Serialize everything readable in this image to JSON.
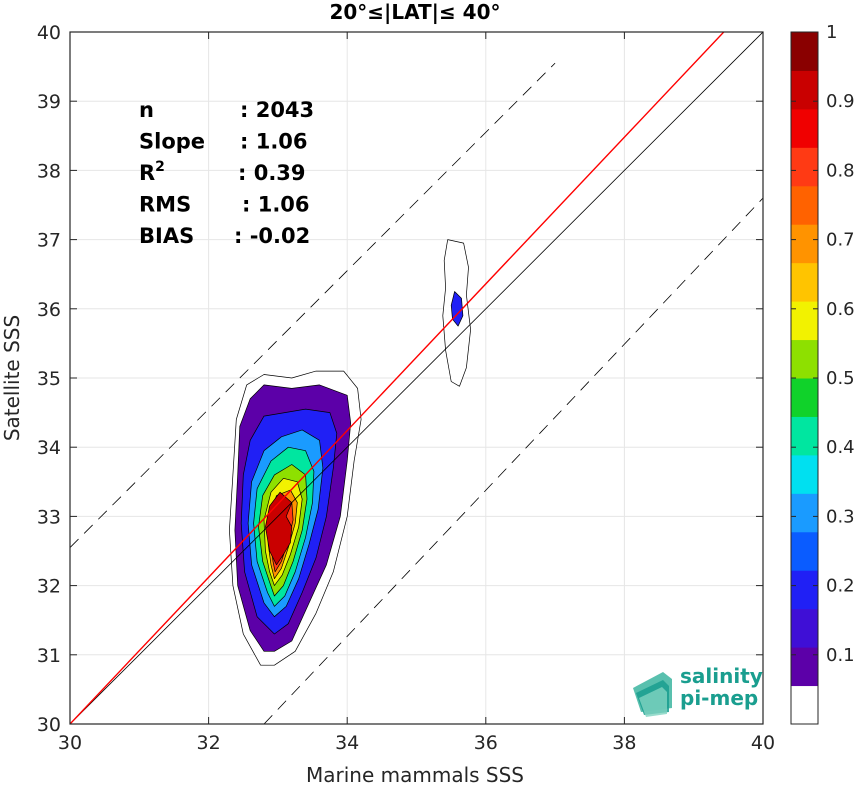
{
  "chart_data": {
    "type": "heatmap",
    "title": "20°≤|LAT|≤ 40°",
    "xlabel": "Marine mammals SSS",
    "ylabel": "Satellite SSS",
    "xlim": [
      30,
      40
    ],
    "ylim": [
      30,
      40
    ],
    "xticks": [
      "30",
      "32",
      "34",
      "36",
      "38",
      "40"
    ],
    "yticks": [
      "30",
      "31",
      "32",
      "33",
      "34",
      "35",
      "36",
      "37",
      "38",
      "39",
      "40"
    ],
    "grid": true,
    "stats": [
      {
        "label": "n",
        "value": ": 2043"
      },
      {
        "label": "Slope",
        "value": ": 1.06"
      },
      {
        "label": "R",
        "sup": "2",
        "value": ": 0.39"
      },
      {
        "label": "RMS",
        "value": ": 1.06"
      },
      {
        "label": "BIAS",
        "value": ": -0.02"
      }
    ],
    "lines": {
      "identity": {
        "color": "#000000",
        "points": [
          [
            30,
            30
          ],
          [
            40,
            40
          ]
        ]
      },
      "regression": {
        "color": "#ff0000",
        "slope": 1.06,
        "points": [
          [
            30,
            30
          ],
          [
            40,
            40.6
          ]
        ]
      },
      "dashed_upper": {
        "color": "#000000",
        "points": [
          [
            30,
            32.55
          ],
          [
            37,
            39.55
          ]
        ]
      },
      "dashed_lower": {
        "color": "#000000",
        "points": [
          [
            32.8,
            30
          ],
          [
            40,
            37.6
          ]
        ]
      }
    },
    "density_regions": [
      {
        "name": "main",
        "levels": [
          {
            "level": 0.05,
            "polygon": [
              [
                32.95,
                30.85
              ],
              [
                33.25,
                31.05
              ],
              [
                33.55,
                31.6
              ],
              [
                33.8,
                32.2
              ],
              [
                34.0,
                33.0
              ],
              [
                34.1,
                33.8
              ],
              [
                34.2,
                34.4
              ],
              [
                34.15,
                34.85
              ],
              [
                33.95,
                35.1
              ],
              [
                33.55,
                35.1
              ],
              [
                33.2,
                35.0
              ],
              [
                32.8,
                35.05
              ],
              [
                32.55,
                34.9
              ],
              [
                32.4,
                34.4
              ],
              [
                32.35,
                33.6
              ],
              [
                32.3,
                32.8
              ],
              [
                32.35,
                32.0
              ],
              [
                32.5,
                31.3
              ],
              [
                32.75,
                30.85
              ]
            ]
          },
          {
            "level": 0.1,
            "polygon": [
              [
                32.95,
                31.05
              ],
              [
                33.2,
                31.2
              ],
              [
                33.45,
                31.75
              ],
              [
                33.7,
                32.3
              ],
              [
                33.9,
                33.0
              ],
              [
                34.0,
                33.8
              ],
              [
                34.05,
                34.35
              ],
              [
                34.0,
                34.75
              ],
              [
                33.6,
                34.9
              ],
              [
                33.2,
                34.85
              ],
              [
                32.8,
                34.9
              ],
              [
                32.6,
                34.7
              ],
              [
                32.45,
                34.3
              ],
              [
                32.42,
                33.6
              ],
              [
                32.38,
                32.8
              ],
              [
                32.42,
                32.0
              ],
              [
                32.6,
                31.35
              ],
              [
                32.8,
                31.05
              ]
            ]
          },
          {
            "level": 0.2,
            "polygon": [
              [
                32.95,
                31.3
              ],
              [
                33.15,
                31.45
              ],
              [
                33.35,
                31.9
              ],
              [
                33.55,
                32.4
              ],
              [
                33.7,
                33.0
              ],
              [
                33.8,
                33.7
              ],
              [
                33.85,
                34.2
              ],
              [
                33.75,
                34.5
              ],
              [
                33.4,
                34.55
              ],
              [
                33.1,
                34.5
              ],
              [
                32.8,
                34.45
              ],
              [
                32.6,
                34.1
              ],
              [
                32.5,
                33.6
              ],
              [
                32.47,
                32.9
              ],
              [
                32.52,
                32.2
              ],
              [
                32.7,
                31.55
              ]
            ]
          },
          {
            "level": 0.3,
            "polygon": [
              [
                32.95,
                31.55
              ],
              [
                33.12,
                31.7
              ],
              [
                33.3,
                32.1
              ],
              [
                33.45,
                32.6
              ],
              [
                33.58,
                33.1
              ],
              [
                33.65,
                33.7
              ],
              [
                33.6,
                34.1
              ],
              [
                33.35,
                34.25
              ],
              [
                33.05,
                34.15
              ],
              [
                32.8,
                33.95
              ],
              [
                32.62,
                33.5
              ],
              [
                32.57,
                32.9
              ],
              [
                32.62,
                32.3
              ],
              [
                32.8,
                31.75
              ]
            ]
          },
          {
            "level": 0.4,
            "polygon": [
              [
                32.95,
                31.7
              ],
              [
                33.1,
                31.85
              ],
              [
                33.25,
                32.2
              ],
              [
                33.4,
                32.7
              ],
              [
                33.5,
                33.2
              ],
              [
                33.52,
                33.65
              ],
              [
                33.4,
                33.95
              ],
              [
                33.15,
                34.0
              ],
              [
                32.9,
                33.8
              ],
              [
                32.7,
                33.4
              ],
              [
                32.65,
                32.9
              ],
              [
                32.7,
                32.35
              ],
              [
                32.85,
                31.9
              ]
            ]
          },
          {
            "level": 0.5,
            "polygon": [
              [
                32.95,
                31.85
              ],
              [
                33.08,
                32.0
              ],
              [
                33.22,
                32.35
              ],
              [
                33.35,
                32.8
              ],
              [
                33.42,
                33.25
              ],
              [
                33.4,
                33.6
              ],
              [
                33.2,
                33.75
              ],
              [
                32.95,
                33.6
              ],
              [
                32.78,
                33.3
              ],
              [
                32.72,
                32.85
              ],
              [
                32.78,
                32.35
              ],
              [
                32.88,
                32.05
              ]
            ]
          },
          {
            "level": 0.6,
            "polygon": [
              [
                32.95,
                32.0
              ],
              [
                33.06,
                32.15
              ],
              [
                33.18,
                32.45
              ],
              [
                33.3,
                32.85
              ],
              [
                33.35,
                33.25
              ],
              [
                33.28,
                33.5
              ],
              [
                33.08,
                33.55
              ],
              [
                32.9,
                33.35
              ],
              [
                32.8,
                32.95
              ],
              [
                32.82,
                32.5
              ],
              [
                32.88,
                32.2
              ]
            ]
          },
          {
            "level": 0.7,
            "polygon": [
              [
                32.95,
                32.1
              ],
              [
                33.05,
                32.25
              ],
              [
                33.15,
                32.55
              ],
              [
                33.25,
                32.9
              ],
              [
                33.28,
                33.2
              ],
              [
                33.18,
                33.38
              ],
              [
                32.98,
                33.3
              ],
              [
                32.87,
                33.0
              ],
              [
                32.86,
                32.6
              ],
              [
                32.9,
                32.3
              ]
            ]
          },
          {
            "level": 0.8,
            "polygon": [
              [
                32.96,
                32.2
              ],
              [
                33.05,
                32.35
              ],
              [
                33.15,
                32.65
              ],
              [
                33.22,
                32.95
              ],
              [
                33.2,
                33.2
              ],
              [
                33.03,
                33.2
              ],
              [
                32.92,
                32.95
              ],
              [
                32.9,
                32.6
              ],
              [
                32.93,
                32.35
              ]
            ]
          },
          {
            "level": 0.9,
            "polygon": [
              [
                32.98,
                32.3
              ],
              [
                33.08,
                32.45
              ],
              [
                33.18,
                32.62
              ],
              [
                33.2,
                32.85
              ],
              [
                33.12,
                33.0
              ],
              [
                33.2,
                33.2
              ],
              [
                33.03,
                33.35
              ],
              [
                32.88,
                33.15
              ],
              [
                32.82,
                32.85
              ],
              [
                32.88,
                32.5
              ]
            ]
          }
        ]
      },
      {
        "name": "secondary",
        "levels": [
          {
            "level": 0.05,
            "polygon": [
              [
                35.45,
                37.0
              ],
              [
                35.68,
                36.95
              ],
              [
                35.75,
                36.6
              ],
              [
                35.72,
                36.2
              ],
              [
                35.78,
                35.7
              ],
              [
                35.72,
                35.15
              ],
              [
                35.62,
                34.88
              ],
              [
                35.5,
                34.95
              ],
              [
                35.42,
                35.4
              ],
              [
                35.38,
                35.9
              ],
              [
                35.42,
                36.3
              ],
              [
                35.4,
                36.7
              ]
            ]
          },
          {
            "level": 0.2,
            "polygon": [
              [
                35.55,
                36.25
              ],
              [
                35.65,
                36.15
              ],
              [
                35.67,
                35.9
              ],
              [
                35.6,
                35.75
              ],
              [
                35.52,
                35.85
              ],
              [
                35.5,
                36.05
              ]
            ]
          }
        ]
      }
    ],
    "colorbar": {
      "ticks": [
        "0.1",
        "0.2",
        "0.3",
        "0.4",
        "0.5",
        "0.6",
        "0.7",
        "0.8",
        "0.9",
        "1"
      ],
      "range": [
        0,
        1
      ],
      "colors": [
        "#ffffff",
        "#5c00a8",
        "#3f0fd6",
        "#2020f5",
        "#0a5cff",
        "#1a9bff",
        "#00e0f0",
        "#00e6a0",
        "#10d22a",
        "#8ee000",
        "#f2f200",
        "#ffc400",
        "#ff9300",
        "#ff6200",
        "#ff3a14",
        "#f00000",
        "#c90000",
        "#8a0000"
      ]
    },
    "logo": {
      "line1": "salinity",
      "line2": "pi-mep"
    }
  }
}
